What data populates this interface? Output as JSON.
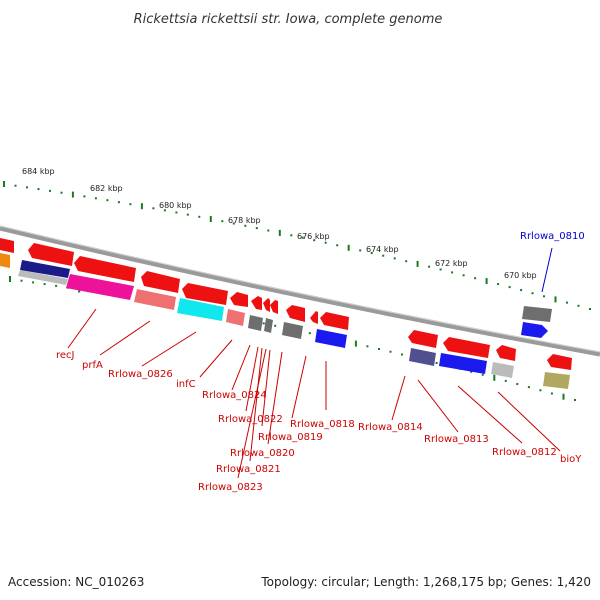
{
  "title": "Rickettsia rickettsii str. Iowa, complete genome",
  "accession": "Accession: NC_010263",
  "summary": "Topology: circular; Length: 1,268,175 bp; Genes: 1,420",
  "colors": {
    "backbone": "#8a8a8a",
    "tick": "#1a7a1a",
    "label_reverse": "#cc0000",
    "label_forward": "#0000cc",
    "gene_red": "#ee1111",
    "gene_blue": "#1a1aee",
    "gene_gray": "#6e6e6e",
    "gene_pink": "#ee1199",
    "gene_cyan": "#11e8ee",
    "gene_salmon": "#ee7070",
    "gene_navy": "#1a1a88",
    "gene_lightgray": "#bbbbbb",
    "gene_olive": "#b0a860",
    "gene_slate": "#505090",
    "gene_orange": "#ee8a11"
  },
  "scale_labels": [
    "684 kbp",
    "682 kbp",
    "680 kbp",
    "678 kbp",
    "676 kbp",
    "674 kbp",
    "672 kbp",
    "670 kbp"
  ],
  "gene_labels": {
    "reverse": [
      "recJ",
      "prfA",
      "Rrlowa_0826",
      "infC",
      "Rrlowa_0824",
      "Rrlowa_0822",
      "Rrlowa_0819",
      "Rrlowa_0820",
      "Rrlowa_0821",
      "Rrlowa_0823",
      "Rrlowa_0818",
      "Rrlowa_0814",
      "Rrlowa_0813",
      "Rrlowa_0812",
      "bioY"
    ],
    "forward": [
      "Rrlowa_0810"
    ]
  }
}
